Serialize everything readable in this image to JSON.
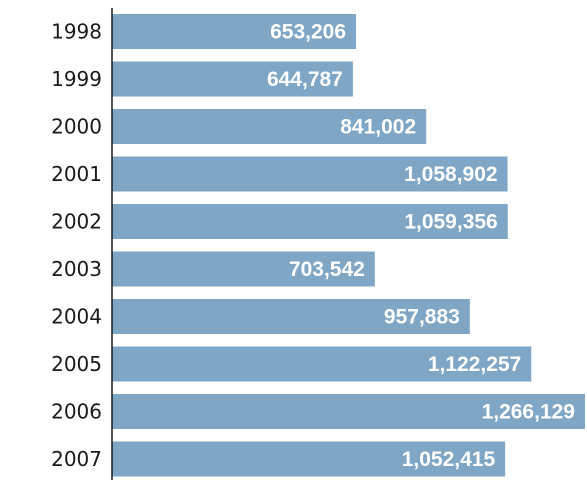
{
  "chart_data": {
    "type": "bar",
    "orientation": "horizontal",
    "categories": [
      "1998",
      "1999",
      "2000",
      "2001",
      "2002",
      "2003",
      "2004",
      "2005",
      "2006",
      "2007"
    ],
    "values": [
      653206,
      644787,
      841002,
      1058902,
      1059356,
      703542,
      957883,
      1122257,
      1266129,
      1052415
    ],
    "value_labels": [
      "653,206",
      "644,787",
      "841,002",
      "1,058,902",
      "1,059,356",
      "703,542",
      "957,883",
      "1,122,257",
      "1,266,129",
      "1,052,415"
    ],
    "title": "",
    "xlabel": "",
    "ylabel": "",
    "grid": false,
    "bar_color": "#7fa6c4",
    "label_color": "#ffffff",
    "data_labels_position": "inside-end"
  }
}
